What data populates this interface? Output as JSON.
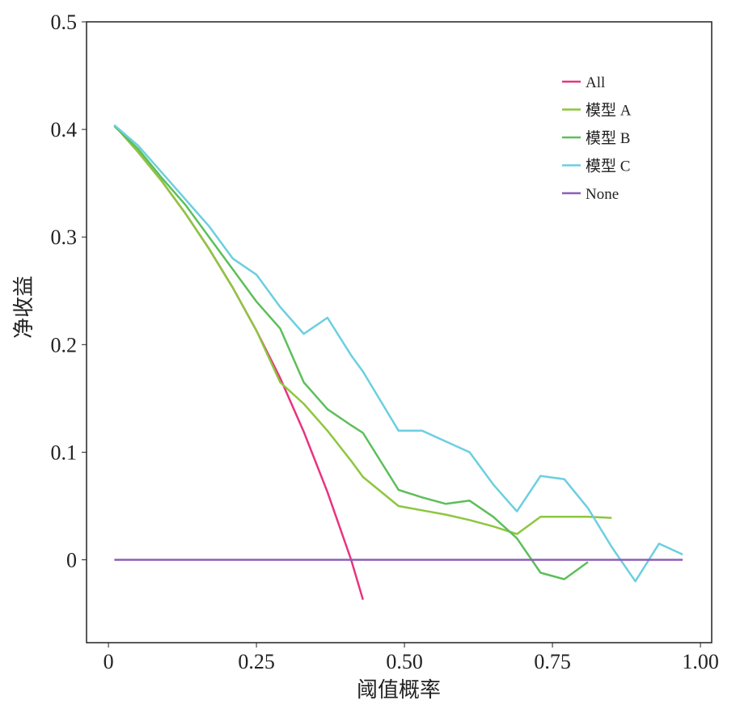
{
  "chart_data": {
    "type": "line",
    "xlabel": "阈值概率",
    "ylabel": "净收益",
    "x": [
      0.01,
      0.05,
      0.09,
      0.13,
      0.17,
      0.21,
      0.25,
      0.29,
      0.33,
      0.37,
      0.41,
      0.43,
      0.49,
      0.53,
      0.57,
      0.61,
      0.65,
      0.69,
      0.73,
      0.77,
      0.81,
      0.85,
      0.89,
      0.93,
      0.97
    ],
    "series": [
      {
        "name": "All",
        "color": "#e8337f",
        "values": [
          0.404,
          0.379,
          0.352,
          0.322,
          0.289,
          0.253,
          0.213,
          0.169,
          0.119,
          0.063,
          0.0,
          -0.037,
          null,
          null,
          null,
          null,
          null,
          null,
          null,
          null,
          null,
          null,
          null,
          null,
          null
        ]
      },
      {
        "name": "模型 A",
        "color": "#8dc63f",
        "values": [
          0.404,
          0.379,
          0.352,
          0.322,
          0.289,
          0.253,
          0.213,
          0.165,
          0.145,
          0.12,
          0.092,
          0.077,
          0.05,
          0.046,
          0.042,
          0.037,
          0.031,
          0.024,
          0.04,
          0.04,
          0.04,
          0.039,
          null,
          null,
          null
        ]
      },
      {
        "name": "模型 B",
        "color": "#5cbf5a",
        "values": [
          0.403,
          0.382,
          0.355,
          0.33,
          0.3,
          0.27,
          0.24,
          0.215,
          0.165,
          0.14,
          0.125,
          0.118,
          0.065,
          0.058,
          0.052,
          0.055,
          0.04,
          0.02,
          -0.012,
          -0.018,
          -0.002,
          null,
          null,
          null,
          null
        ]
      },
      {
        "name": "模型 C",
        "color": "#6ccfe0",
        "values": [
          0.404,
          0.385,
          0.36,
          0.335,
          0.31,
          0.28,
          0.265,
          0.235,
          0.21,
          0.225,
          0.19,
          0.175,
          0.12,
          0.12,
          0.11,
          0.1,
          0.07,
          0.045,
          0.078,
          0.075,
          0.048,
          0.012,
          -0.02,
          0.015,
          0.005
        ]
      },
      {
        "name": "None",
        "color": "#8e5db5",
        "values": [
          0,
          0,
          0,
          0,
          0,
          0,
          0,
          0,
          0,
          0,
          0,
          0,
          0,
          0,
          0,
          0,
          0,
          0,
          0,
          0,
          0,
          0,
          0,
          0,
          0
        ]
      }
    ],
    "xlim": [
      -0.037,
      1.019
    ],
    "ylim": [
      -0.077,
      0.5
    ],
    "xticks": [
      0,
      0.25,
      {
        "value": 0.5,
        "label": "0.50"
      },
      0.75,
      {
        "value": 1,
        "label": "1.00"
      }
    ],
    "yticks": [
      0,
      0.1,
      0.2,
      0.3,
      0.4,
      0.5
    ],
    "legend": "upper-right"
  }
}
